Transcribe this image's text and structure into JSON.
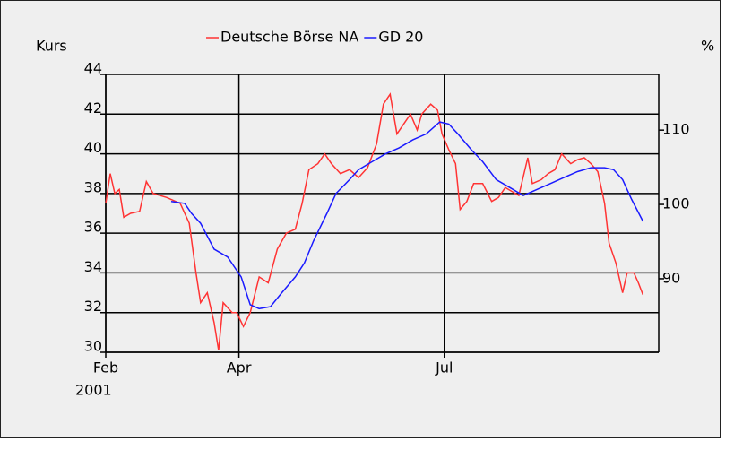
{
  "chart_data": {
    "type": "line",
    "ylabel": "Kurs",
    "y2label": "%",
    "xlabel": "2001",
    "xlim": [
      0,
      245
    ],
    "xticks": [
      {
        "value": 0,
        "label": "Feb"
      },
      {
        "value": 59,
        "label": "Apr"
      },
      {
        "value": 150,
        "label": "Jul"
      }
    ],
    "ylim": [
      30,
      44
    ],
    "yticks": [
      30,
      32,
      34,
      36,
      38,
      40,
      42,
      44
    ],
    "y2lim": [
      80.1,
      117.5
    ],
    "y2ticks": [
      90,
      100,
      110
    ],
    "grid": true,
    "legend": "top",
    "series": [
      {
        "name": "Deutsche Börse NA",
        "color": "#ff3333",
        "x": [
          0,
          2,
          4,
          6,
          8,
          11,
          15,
          18,
          21,
          27,
          33,
          37,
          40,
          42,
          45,
          48,
          50,
          52,
          56,
          58,
          61,
          64,
          68,
          72,
          76,
          80,
          84,
          87,
          90,
          94,
          97,
          100,
          104,
          108,
          112,
          116,
          120,
          123,
          126,
          129,
          132,
          135,
          138,
          140,
          144,
          147,
          149,
          152,
          155,
          157,
          160,
          163,
          167,
          171,
          174,
          177,
          180,
          183,
          187,
          189,
          193,
          196,
          199,
          202,
          206,
          209,
          212,
          215,
          218,
          221,
          223,
          226,
          229,
          231,
          234,
          236,
          238
        ],
        "values": [
          37.5,
          39,
          38,
          38.2,
          36.8,
          37,
          37.1,
          38.6,
          38,
          37.8,
          37.5,
          36.5,
          34,
          32.5,
          33,
          31.5,
          30.1,
          32.5,
          32,
          32,
          31.3,
          32,
          33.8,
          33.5,
          35.2,
          36,
          36.2,
          37.5,
          39.2,
          39.5,
          40,
          39.5,
          39,
          39.2,
          38.8,
          39.3,
          40.5,
          42.5,
          43,
          41,
          41.5,
          42,
          41.2,
          42,
          42.5,
          42.2,
          41,
          40.2,
          39.5,
          37.2,
          37.6,
          38.5,
          38.5,
          37.6,
          37.8,
          38.3,
          38.1,
          37.9,
          39.8,
          38.5,
          38.7,
          39,
          39.2,
          40,
          39.5,
          39.7,
          39.8,
          39.5,
          39.1,
          37.5,
          35.5,
          34.5,
          33,
          34,
          34,
          33.5,
          32.9
        ]
      },
      {
        "name": "GD 20",
        "color": "#1a1aff",
        "x": [
          29,
          35,
          38,
          42,
          48,
          54,
          60,
          64,
          68,
          73,
          78,
          84,
          88,
          92,
          98,
          102,
          108,
          112,
          118,
          124,
          130,
          136,
          142,
          148,
          152,
          156,
          162,
          167,
          173,
          179,
          185,
          191,
          197,
          203,
          209,
          215,
          221,
          225,
          229,
          233,
          238
        ],
        "values": [
          37.6,
          37.5,
          37,
          36.5,
          35.2,
          34.8,
          33.8,
          32.4,
          32.2,
          32.3,
          33,
          33.8,
          34.5,
          35.6,
          37,
          38,
          38.7,
          39.2,
          39.6,
          40,
          40.3,
          40.7,
          41,
          41.6,
          41.5,
          41,
          40.2,
          39.6,
          38.7,
          38.3,
          37.9,
          38.2,
          38.5,
          38.8,
          39.1,
          39.3,
          39.3,
          39.2,
          38.7,
          37.7,
          36.6
        ]
      }
    ]
  }
}
